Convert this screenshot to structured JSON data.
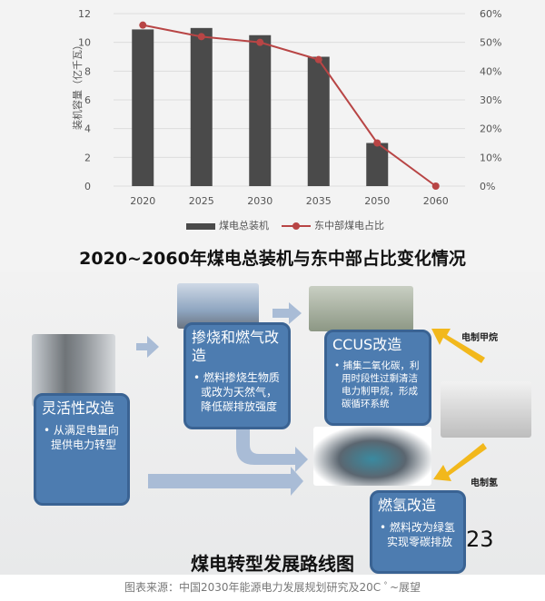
{
  "chart_data": {
    "type": "bar+line",
    "categories": [
      "2020",
      "2025",
      "2030",
      "2035",
      "2050",
      "2060"
    ],
    "series": [
      {
        "name": "煤电总装机",
        "type": "bar",
        "axis": "left",
        "values": [
          10.9,
          11.0,
          10.5,
          9.0,
          3.0,
          0
        ]
      },
      {
        "name": "东中部煤电占比",
        "type": "line",
        "axis": "right",
        "values": [
          56,
          52,
          50,
          44,
          15,
          0
        ]
      }
    ],
    "ylabel": "装机容量（亿千瓦）",
    "ylim": [
      0,
      12
    ],
    "yticks": [
      "0",
      "2",
      "4",
      "6",
      "8",
      "10",
      "12"
    ],
    "y2lim": [
      0,
      60
    ],
    "y2ticks": [
      "0%",
      "10%",
      "20%",
      "30%",
      "40%",
      "50%",
      "60%"
    ],
    "grid": true,
    "legend": "bottom",
    "title": "2020~2060年煤电总装机与东中部占比变化情况",
    "colors": {
      "bar": "#4a4a4a",
      "line": "#b84545"
    }
  },
  "diagram": {
    "title": "煤电转型发展路线图",
    "page_number": "23",
    "boxes": [
      {
        "title": "灵活性改造",
        "bullet": "• 从满足电量向提供电力转型"
      },
      {
        "title": "掺烧和燃气改造",
        "bullet": "• 燃料掺烧生物质或改为天然气，降低碳排放强度"
      },
      {
        "title": "CCUS改造",
        "bullet": "• 捕集二氧化碳，利用时段性过剩清洁电力制甲烷，形成碳循环系统"
      },
      {
        "title": "燃氢改造",
        "bullet": "• 燃料改为绿氢实现零碳排放"
      }
    ],
    "labels": {
      "methane": "电制甲烷",
      "hydrogen": "电制氢"
    },
    "colors": {
      "box": "#4d7cb0",
      "arrow_yellow": "#f2b81c",
      "arrow_blue": "#a9bcd6"
    }
  },
  "source": "图表来源：中国2030年能源电力发展规划研究及20C ﾟ~展望"
}
